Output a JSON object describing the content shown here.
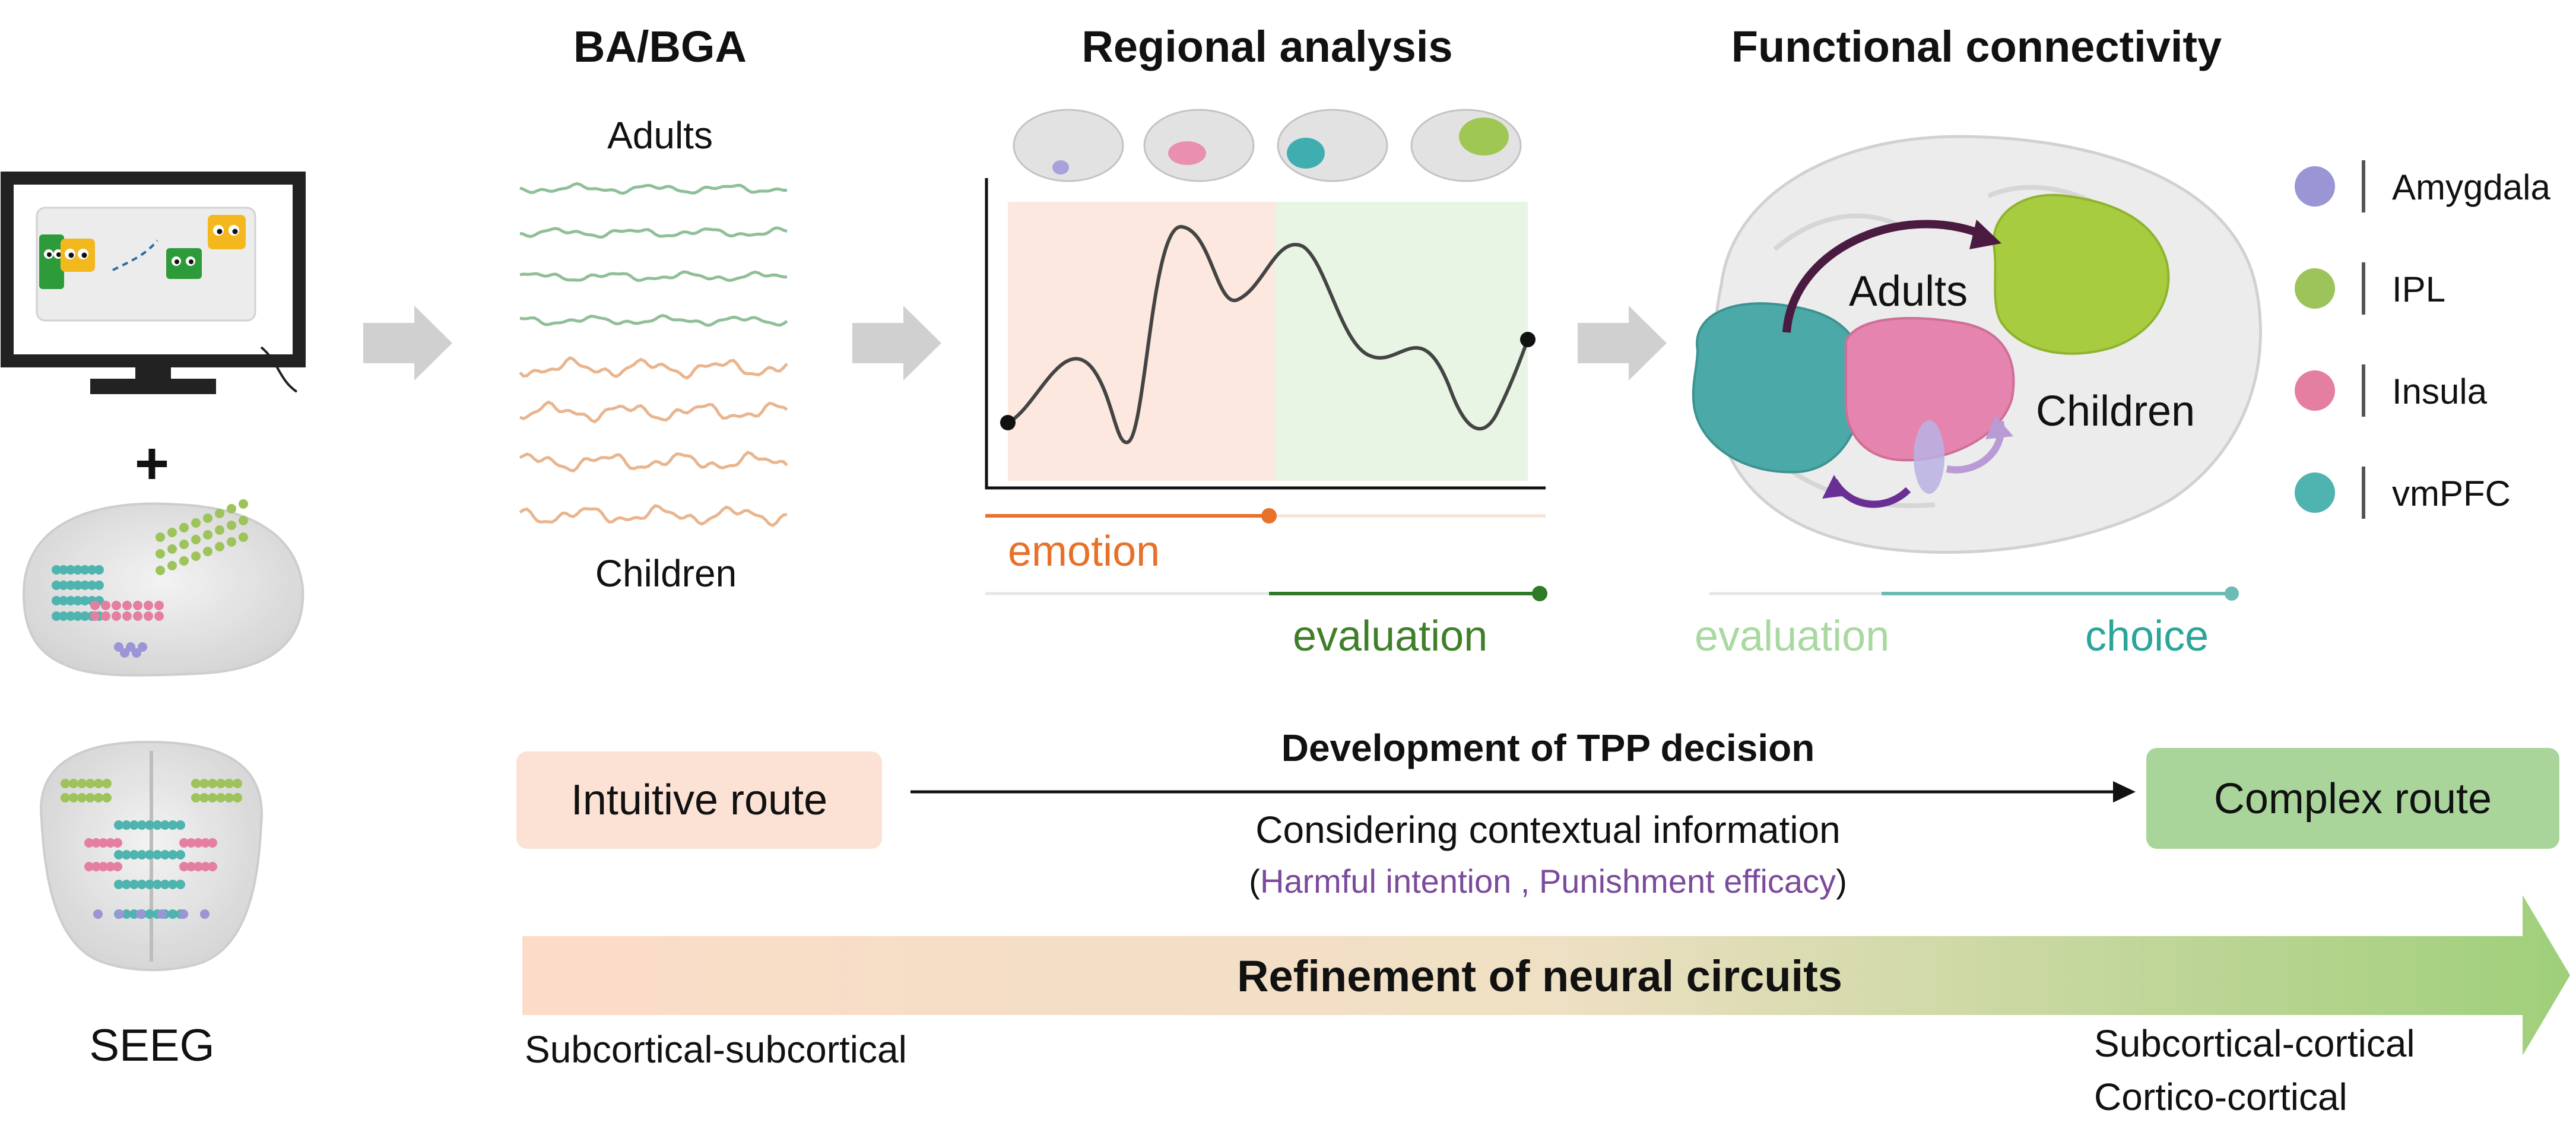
{
  "headers": {
    "ba_bga": "BA/BGA",
    "regional": "Regional analysis",
    "connectivity": "Functional connectivity"
  },
  "left": {
    "plus": "+",
    "seeg": "SEEG"
  },
  "ba_bga_panel": {
    "adults": "Adults",
    "children": "Children",
    "adult_wave_color": "#8fbf98",
    "child_wave_color": "#e8b58e"
  },
  "regional_panel": {
    "emotion": "emotion",
    "evaluation": "evaluation",
    "emotion_color": "#e8712a",
    "evaluation_color": "#3f7f2a"
  },
  "connectivity_panel": {
    "adults": "Adults",
    "children": "Children",
    "evaluation": "evaluation",
    "choice": "choice",
    "evaluation_color": "#a9d8a0",
    "choice_color": "#2aa59a"
  },
  "legend": [
    {
      "label": "Amygdala",
      "color": "#9a96d6"
    },
    {
      "label": "IPL",
      "color": "#9cc45a"
    },
    {
      "label": "Insula",
      "color": "#e47fa2"
    },
    {
      "label": "vmPFC",
      "color": "#4fb4b0"
    }
  ],
  "bottom": {
    "intuitive": "Intuitive route",
    "complex": "Complex route",
    "development": "Development of TPP decision",
    "considering": "Considering contextual information",
    "paren_open": "(",
    "harmful": "Harmful intention",
    "sep": " , ",
    "punishment": "Punishment efficacy",
    "paren_close": ")",
    "purple": "#7b4a9c",
    "refinement": "Refinement of neural circuits",
    "sub_sub": "Subcortical-subcortical",
    "sub_cort": "Subcortical-cortical",
    "cort_cort": "Cortico-cortical"
  }
}
